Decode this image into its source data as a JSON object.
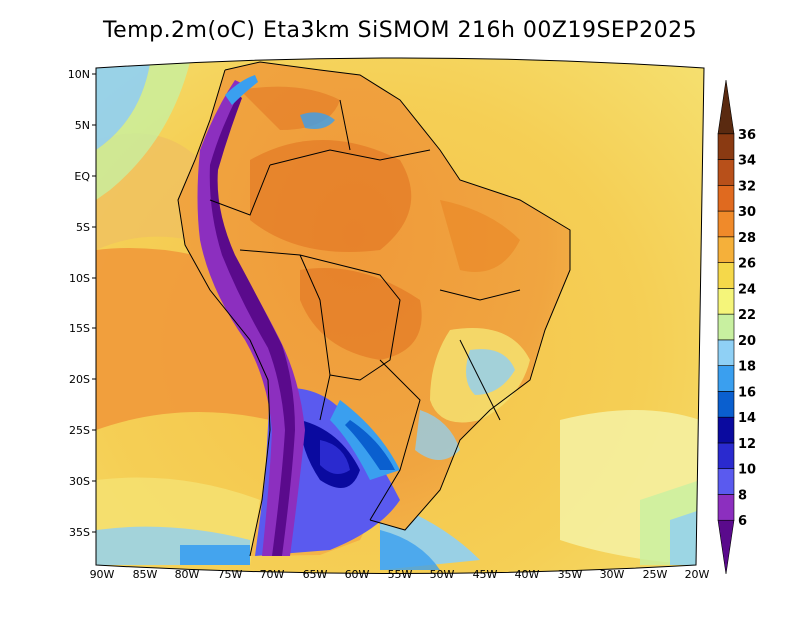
{
  "title": "Temp.2m(oC) Eta3km SiSMOM 216h 00Z19SEP2025",
  "lat_labels": [
    "10N",
    "5N",
    "EQ",
    "5S",
    "10S",
    "15S",
    "20S",
    "25S",
    "30S",
    "35S"
  ],
  "lon_labels": [
    "90W",
    "85W",
    "80W",
    "75W",
    "70W",
    "65W",
    "60W",
    "55W",
    "50W",
    "45W",
    "40W",
    "35W",
    "30W",
    "25W",
    "20W"
  ],
  "colorbar": {
    "labels": [
      "6",
      "8",
      "10",
      "12",
      "14",
      "16",
      "18",
      "20",
      "22",
      "24",
      "26",
      "28",
      "30",
      "32",
      "34",
      "36"
    ],
    "colors": [
      "#5a0a8c",
      "#8c2fbf",
      "#5a5aef",
      "#2a2acf",
      "#0a0a9f",
      "#0a5fcf",
      "#3a9fef",
      "#8fd0f5",
      "#c8f0a0",
      "#f5f57a",
      "#f5d84a",
      "#f5b03a",
      "#f08a2a",
      "#e06a1f",
      "#b8501a",
      "#8a3a12",
      "#5a2a10"
    ]
  }
}
